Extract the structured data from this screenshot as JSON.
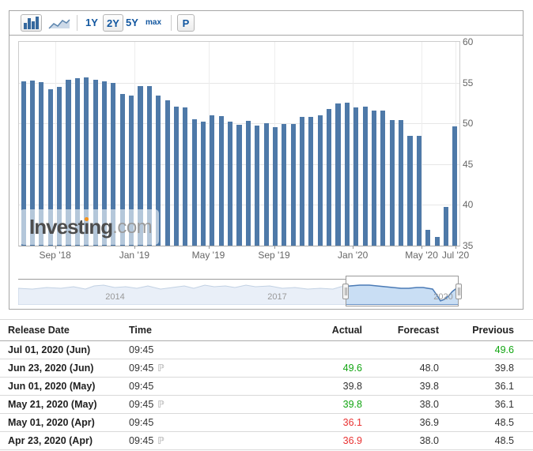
{
  "toolbar": {
    "chart_type_buttons": [
      {
        "name": "bar-chart",
        "selected": true
      },
      {
        "name": "line-chart",
        "selected": false
      }
    ],
    "range_buttons": [
      {
        "label": "1Y",
        "selected": false
      },
      {
        "label": "2Y",
        "selected": true
      },
      {
        "label": "5Y",
        "selected": false
      },
      {
        "label": "max",
        "selected": false
      }
    ],
    "p_button_label": "P"
  },
  "chart_data": {
    "type": "bar",
    "title": "",
    "xlabel": "",
    "ylabel": "",
    "ylim": [
      35,
      60
    ],
    "grid": true,
    "legend": false,
    "bar_color": "#4e79a8",
    "y_ticks": [
      "60",
      "55",
      "50",
      "45",
      "40",
      "35"
    ],
    "x_ticks": [
      {
        "label": "Sep '18",
        "pct": 8.2
      },
      {
        "label": "Jan '19",
        "pct": 26.2
      },
      {
        "label": "May '19",
        "pct": 43.0
      },
      {
        "label": "Sep '19",
        "pct": 57.9
      },
      {
        "label": "Jan '20",
        "pct": 75.8
      },
      {
        "label": "May '20",
        "pct": 91.4
      },
      {
        "label": "Jul '20",
        "pct": 99.1
      }
    ],
    "values": [
      55.2,
      55.3,
      55.1,
      54.2,
      54.5,
      55.4,
      55.5,
      55.6,
      55.4,
      55.2,
      55.0,
      53.6,
      53.4,
      54.6,
      54.6,
      53.4,
      52.8,
      52.1,
      52.0,
      50.5,
      50.2,
      51.0,
      50.9,
      50.2,
      49.8,
      50.3,
      49.7,
      50.0,
      49.5,
      49.9,
      49.9,
      50.8,
      50.8,
      51.0,
      51.8,
      52.4,
      52.5,
      52.0,
      52.1,
      51.6,
      51.6,
      50.4,
      50.4,
      48.5,
      48.5,
      36.9,
      36.1,
      39.8,
      49.6
    ]
  },
  "watermark": {
    "part1": "Invest",
    "idot": "ı",
    "part2": "ng",
    "suffix": ".com",
    "dot_color": "#f7941d"
  },
  "navigator": {
    "years": [
      {
        "label": "2014",
        "pct": 22.0
      },
      {
        "label": "2017",
        "pct": 58.8
      },
      {
        "label": "2020",
        "pct": 96.5
      }
    ],
    "selection": {
      "start_pct": 74.4,
      "end_pct": 100
    },
    "sparkline": [
      [
        0,
        12
      ],
      [
        18,
        13
      ],
      [
        36,
        11
      ],
      [
        54,
        12
      ],
      [
        70,
        10
      ],
      [
        85,
        13
      ],
      [
        96,
        9
      ],
      [
        108,
        8
      ],
      [
        122,
        11
      ],
      [
        136,
        10
      ],
      [
        150,
        12
      ],
      [
        164,
        9
      ],
      [
        180,
        13
      ],
      [
        195,
        11
      ],
      [
        210,
        9
      ],
      [
        222,
        12
      ],
      [
        236,
        8
      ],
      [
        248,
        10
      ],
      [
        262,
        9
      ],
      [
        274,
        11
      ],
      [
        288,
        8
      ],
      [
        300,
        10
      ],
      [
        318,
        9
      ],
      [
        334,
        12
      ],
      [
        350,
        11
      ],
      [
        366,
        13
      ],
      [
        382,
        12
      ],
      [
        398,
        13
      ],
      [
        408,
        10
      ],
      [
        420,
        9
      ],
      [
        432,
        8
      ],
      [
        444,
        8
      ],
      [
        454,
        9
      ],
      [
        464,
        10
      ],
      [
        474,
        11
      ],
      [
        484,
        12
      ],
      [
        494,
        12
      ],
      [
        504,
        11
      ],
      [
        512,
        11
      ],
      [
        518,
        12
      ],
      [
        524,
        13
      ],
      [
        529,
        20
      ],
      [
        534,
        28
      ],
      [
        539,
        26
      ],
      [
        544,
        22
      ],
      [
        549,
        16
      ],
      [
        553,
        13
      ],
      [
        557,
        12
      ]
    ]
  },
  "table": {
    "columns": [
      "Release Date",
      "Time",
      "Actual",
      "Forecast",
      "Previous"
    ],
    "prelim_icon": "ℙ",
    "rows": [
      {
        "date": "Jul 01, 2020 (Jun)",
        "time": "09:45",
        "prelim": false,
        "actual": "",
        "forecast": "",
        "previous": "49.6",
        "actual_color": "#333333",
        "previous_color": "#11a511"
      },
      {
        "date": "Jun 23, 2020 (Jun)",
        "time": "09:45",
        "prelim": true,
        "actual": "49.6",
        "forecast": "48.0",
        "previous": "39.8",
        "actual_color": "#11a511",
        "previous_color": "#333333"
      },
      {
        "date": "Jun 01, 2020 (May)",
        "time": "09:45",
        "prelim": false,
        "actual": "39.8",
        "forecast": "39.8",
        "previous": "36.1",
        "actual_color": "#333333",
        "previous_color": "#333333"
      },
      {
        "date": "May 21, 2020 (May)",
        "time": "09:45",
        "prelim": true,
        "actual": "39.8",
        "forecast": "38.0",
        "previous": "36.1",
        "actual_color": "#11a511",
        "previous_color": "#333333"
      },
      {
        "date": "May 01, 2020 (Apr)",
        "time": "09:45",
        "prelim": false,
        "actual": "36.1",
        "forecast": "36.9",
        "previous": "48.5",
        "actual_color": "#e93232",
        "previous_color": "#333333"
      },
      {
        "date": "Apr 23, 2020 (Apr)",
        "time": "09:45",
        "prelim": true,
        "actual": "36.9",
        "forecast": "38.0",
        "previous": "48.5",
        "actual_color": "#e93232",
        "previous_color": "#333333"
      }
    ]
  },
  "colors": {
    "accent_blue": "#1257a0",
    "bar": "#4e79a8",
    "green": "#11a511",
    "red": "#e93232",
    "nav_selected_fill": "#c9def4",
    "nav_selected_line": "#4a7ab5"
  }
}
